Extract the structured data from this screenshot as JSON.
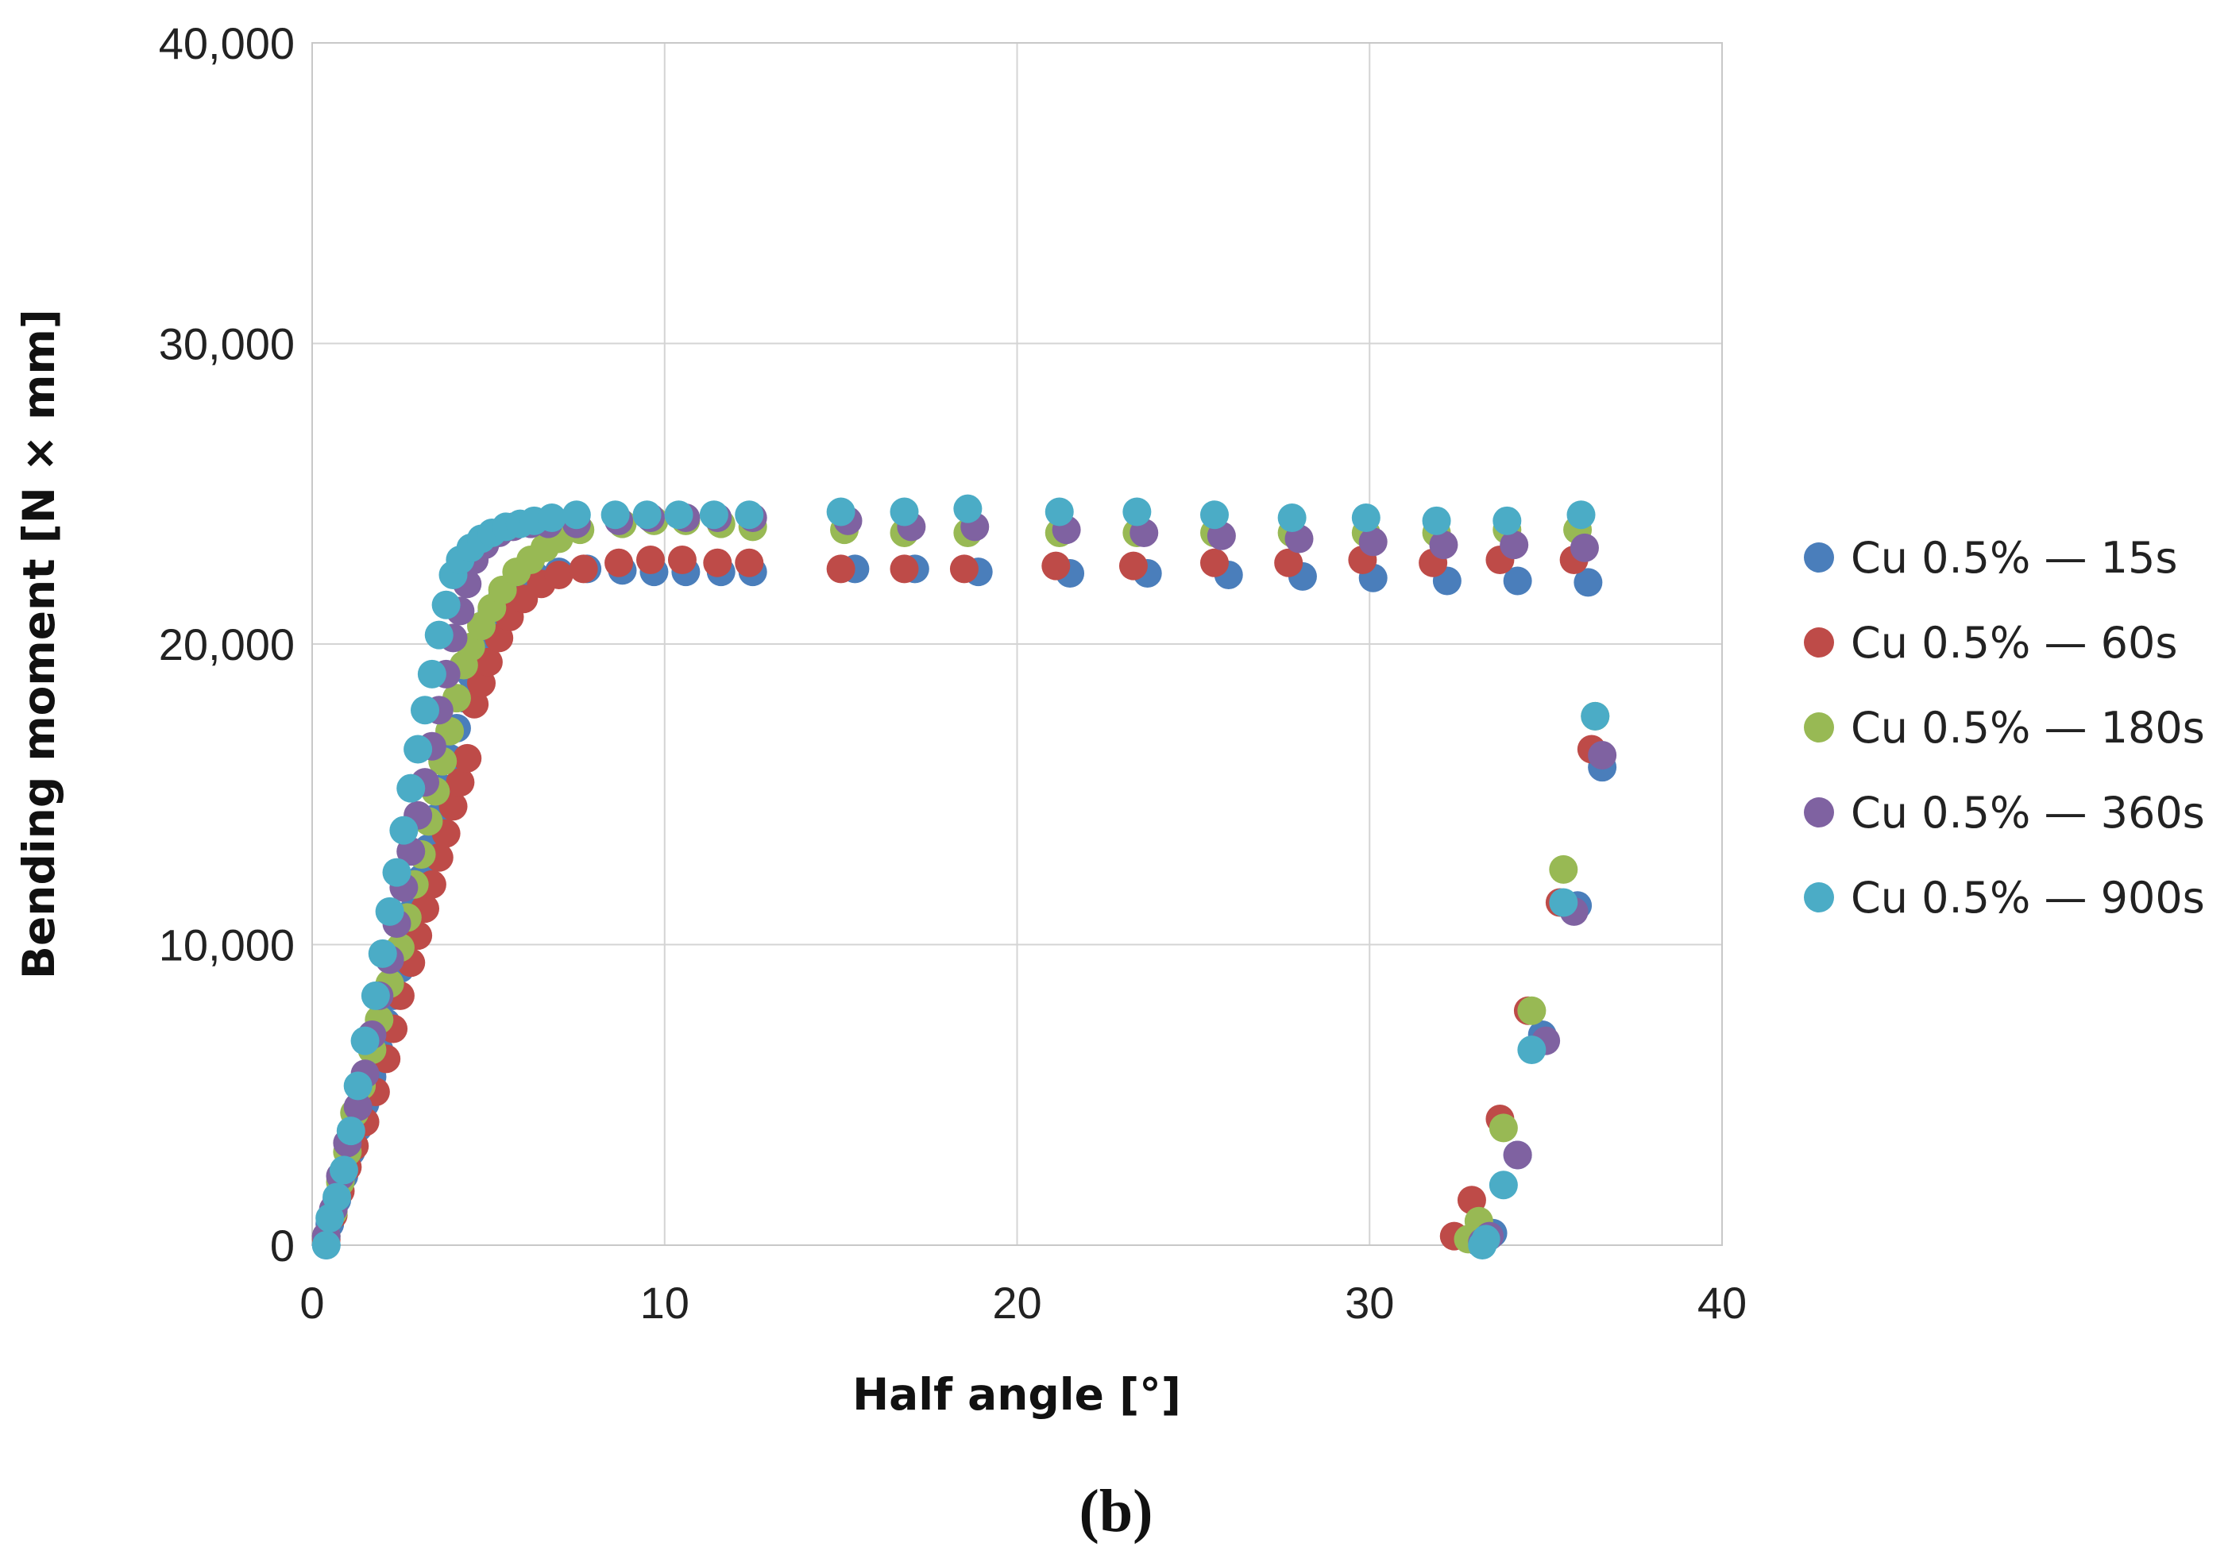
{
  "chart_data": {
    "type": "scatter",
    "title": "",
    "xlabel": "Half angle [°]",
    "ylabel": "Bending moment [N × mm]",
    "caption": "(b)",
    "xlim": [
      0,
      40
    ],
    "ylim": [
      0,
      40000
    ],
    "xticks": [
      0,
      10,
      20,
      30,
      40
    ],
    "yticks": [
      0,
      10000,
      20000,
      30000,
      40000
    ],
    "xtick_labels": [
      "0",
      "10",
      "20",
      "30",
      "40"
    ],
    "ytick_labels": [
      "0",
      "10,000",
      "20,000",
      "30,000",
      "40,000"
    ],
    "grid": true,
    "legend_position": "right",
    "series": [
      {
        "name": "Cu 0.5% — 15s",
        "color": "#4a7ebb",
        "points": [
          [
            0.4,
            0
          ],
          [
            0.5,
            700
          ],
          [
            0.7,
            1500
          ],
          [
            0.9,
            2300
          ],
          [
            1.1,
            3100
          ],
          [
            1.3,
            3900
          ],
          [
            1.5,
            4700
          ],
          [
            1.7,
            5600
          ],
          [
            1.9,
            6500
          ],
          [
            2.1,
            7400
          ],
          [
            2.3,
            8300
          ],
          [
            2.5,
            9200
          ],
          [
            2.7,
            10200
          ],
          [
            2.9,
            11200
          ],
          [
            3.1,
            12200
          ],
          [
            3.3,
            13200
          ],
          [
            3.5,
            14200
          ],
          [
            3.7,
            15200
          ],
          [
            3.9,
            16200
          ],
          [
            4.1,
            17200
          ],
          [
            4.3,
            18200
          ],
          [
            4.5,
            19000
          ],
          [
            4.7,
            19800
          ],
          [
            4.9,
            20500
          ],
          [
            5.1,
            21100
          ],
          [
            5.4,
            21600
          ],
          [
            5.8,
            22000
          ],
          [
            6.3,
            22300
          ],
          [
            7,
            22400
          ],
          [
            7.8,
            22500
          ],
          [
            8.8,
            22450
          ],
          [
            9.7,
            22400
          ],
          [
            10.6,
            22400
          ],
          [
            11.6,
            22400
          ],
          [
            12.5,
            22400
          ],
          [
            15.4,
            22500
          ],
          [
            17.1,
            22500
          ],
          [
            18.9,
            22400
          ],
          [
            21.5,
            22350
          ],
          [
            23.7,
            22350
          ],
          [
            26,
            22300
          ],
          [
            28.1,
            22250
          ],
          [
            30.1,
            22200
          ],
          [
            32.2,
            22100
          ],
          [
            34.2,
            22100
          ],
          [
            36.2,
            22050
          ],
          [
            36.6,
            15900
          ],
          [
            35.9,
            11300
          ],
          [
            34.9,
            7000
          ],
          [
            34.2,
            3000
          ],
          [
            33.5,
            400
          ],
          [
            33.1,
            100
          ]
        ]
      },
      {
        "name": "Cu 0.5% — 60s",
        "color": "#be4b48",
        "points": [
          [
            0.4,
            200
          ],
          [
            0.6,
            1000
          ],
          [
            0.8,
            1800
          ],
          [
            1,
            2600
          ],
          [
            1.2,
            3300
          ],
          [
            1.5,
            4100
          ],
          [
            1.8,
            5100
          ],
          [
            2.1,
            6200
          ],
          [
            2.3,
            7200
          ],
          [
            2.5,
            8300
          ],
          [
            2.8,
            9400
          ],
          [
            3,
            10300
          ],
          [
            3.2,
            11200
          ],
          [
            3.4,
            12000
          ],
          [
            3.6,
            12900
          ],
          [
            3.8,
            13700
          ],
          [
            4,
            14600
          ],
          [
            4.2,
            15400
          ],
          [
            4.4,
            16200
          ],
          [
            4.6,
            18000
          ],
          [
            4.8,
            18700
          ],
          [
            5,
            19400
          ],
          [
            5.3,
            20200
          ],
          [
            5.6,
            20900
          ],
          [
            6,
            21500
          ],
          [
            6.5,
            22000
          ],
          [
            7,
            22300
          ],
          [
            7.7,
            22500
          ],
          [
            8.7,
            22700
          ],
          [
            9.6,
            22800
          ],
          [
            10.5,
            22800
          ],
          [
            11.5,
            22700
          ],
          [
            12.4,
            22700
          ],
          [
            15,
            22500
          ],
          [
            16.8,
            22500
          ],
          [
            18.5,
            22500
          ],
          [
            21.1,
            22600
          ],
          [
            23.3,
            22600
          ],
          [
            25.6,
            22700
          ],
          [
            27.7,
            22700
          ],
          [
            29.8,
            22800
          ],
          [
            31.8,
            22700
          ],
          [
            33.7,
            22800
          ],
          [
            35.8,
            22800
          ],
          [
            36.3,
            16500
          ],
          [
            35.4,
            11400
          ],
          [
            34.5,
            7800
          ],
          [
            33.7,
            4200
          ],
          [
            32.9,
            1500
          ],
          [
            32.4,
            300
          ]
        ]
      },
      {
        "name": "Cu 0.5% — 180s",
        "color": "#98b954",
        "points": [
          [
            0.4,
            300
          ],
          [
            0.6,
            1100
          ],
          [
            0.8,
            2100
          ],
          [
            1,
            3100
          ],
          [
            1.2,
            4400
          ],
          [
            1.4,
            5300
          ],
          [
            1.7,
            6500
          ],
          [
            1.9,
            7500
          ],
          [
            2.2,
            8700
          ],
          [
            2.5,
            9900
          ],
          [
            2.7,
            10900
          ],
          [
            2.9,
            12000
          ],
          [
            3.1,
            13000
          ],
          [
            3.3,
            14100
          ],
          [
            3.5,
            15100
          ],
          [
            3.7,
            16100
          ],
          [
            3.9,
            17100
          ],
          [
            4.1,
            18200
          ],
          [
            4.3,
            19300
          ],
          [
            4.5,
            19900
          ],
          [
            4.8,
            20600
          ],
          [
            5.1,
            21200
          ],
          [
            5.4,
            21800
          ],
          [
            5.8,
            22400
          ],
          [
            6.2,
            22800
          ],
          [
            6.6,
            23200
          ],
          [
            7,
            23500
          ],
          [
            7.6,
            23800
          ],
          [
            8.8,
            24000
          ],
          [
            9.7,
            24100
          ],
          [
            10.6,
            24100
          ],
          [
            11.6,
            24000
          ],
          [
            12.5,
            23900
          ],
          [
            15.1,
            23800
          ],
          [
            16.8,
            23700
          ],
          [
            18.6,
            23700
          ],
          [
            21.2,
            23700
          ],
          [
            23.4,
            23700
          ],
          [
            25.6,
            23700
          ],
          [
            27.8,
            23700
          ],
          [
            29.9,
            23700
          ],
          [
            31.9,
            23700
          ],
          [
            33.9,
            23800
          ],
          [
            35.9,
            23800
          ],
          [
            36.4,
            17600
          ],
          [
            35.5,
            12500
          ],
          [
            34.6,
            7800
          ],
          [
            33.8,
            3900
          ],
          [
            33.1,
            800
          ],
          [
            32.8,
            200
          ]
        ]
      },
      {
        "name": "Cu 0.5% — 360s",
        "color": "#7f62a1",
        "points": [
          [
            0.4,
            300
          ],
          [
            0.6,
            1200
          ],
          [
            0.8,
            2300
          ],
          [
            1,
            3400
          ],
          [
            1.3,
            4600
          ],
          [
            1.5,
            5700
          ],
          [
            1.7,
            7000
          ],
          [
            1.9,
            8300
          ],
          [
            2.2,
            9500
          ],
          [
            2.4,
            10700
          ],
          [
            2.6,
            11900
          ],
          [
            2.8,
            13100
          ],
          [
            3,
            14300
          ],
          [
            3.2,
            15400
          ],
          [
            3.4,
            16600
          ],
          [
            3.6,
            17800
          ],
          [
            3.8,
            19000
          ],
          [
            4,
            20200
          ],
          [
            4.2,
            21100
          ],
          [
            4.4,
            22000
          ],
          [
            4.6,
            22800
          ],
          [
            4.9,
            23300
          ],
          [
            5.3,
            23700
          ],
          [
            5.7,
            23900
          ],
          [
            6.2,
            24000
          ],
          [
            6.7,
            24000
          ],
          [
            7.5,
            24000
          ],
          [
            8.7,
            24100
          ],
          [
            9.6,
            24200
          ],
          [
            10.6,
            24200
          ],
          [
            11.5,
            24200
          ],
          [
            12.5,
            24200
          ],
          [
            15.2,
            24100
          ],
          [
            17,
            23900
          ],
          [
            18.8,
            23900
          ],
          [
            21.4,
            23800
          ],
          [
            23.6,
            23700
          ],
          [
            25.8,
            23600
          ],
          [
            28,
            23500
          ],
          [
            30.1,
            23400
          ],
          [
            32.1,
            23300
          ],
          [
            34.1,
            23300
          ],
          [
            36.1,
            23200
          ],
          [
            36.6,
            16300
          ],
          [
            35.8,
            11100
          ],
          [
            35,
            6800
          ],
          [
            34.2,
            3000
          ],
          [
            33.4,
            300
          ],
          [
            33.2,
            100
          ]
        ]
      },
      {
        "name": "Cu 0.5% — 900s",
        "color": "#4bacc6",
        "points": [
          [
            0.4,
            0
          ],
          [
            0.5,
            900
          ],
          [
            0.7,
            1600
          ],
          [
            0.9,
            2500
          ],
          [
            1.1,
            3800
          ],
          [
            1.3,
            5300
          ],
          [
            1.5,
            6800
          ],
          [
            1.8,
            8300
          ],
          [
            2,
            9700
          ],
          [
            2.2,
            11100
          ],
          [
            2.4,
            12400
          ],
          [
            2.6,
            13800
          ],
          [
            2.8,
            15200
          ],
          [
            3,
            16500
          ],
          [
            3.2,
            17800
          ],
          [
            3.4,
            19000
          ],
          [
            3.6,
            20300
          ],
          [
            3.8,
            21300
          ],
          [
            4,
            22300
          ],
          [
            4.2,
            22800
          ],
          [
            4.5,
            23200
          ],
          [
            4.8,
            23500
          ],
          [
            5.1,
            23700
          ],
          [
            5.5,
            23900
          ],
          [
            5.9,
            24000
          ],
          [
            6.3,
            24100
          ],
          [
            6.8,
            24200
          ],
          [
            7.5,
            24300
          ],
          [
            8.6,
            24300
          ],
          [
            9.5,
            24300
          ],
          [
            10.4,
            24300
          ],
          [
            11.4,
            24300
          ],
          [
            12.4,
            24300
          ],
          [
            15,
            24400
          ],
          [
            16.8,
            24400
          ],
          [
            18.6,
            24500
          ],
          [
            21.2,
            24400
          ],
          [
            23.4,
            24400
          ],
          [
            25.6,
            24300
          ],
          [
            27.8,
            24200
          ],
          [
            29.9,
            24200
          ],
          [
            31.9,
            24100
          ],
          [
            33.9,
            24100
          ],
          [
            36,
            24300
          ],
          [
            36.4,
            17600
          ],
          [
            35.5,
            11400
          ],
          [
            34.6,
            6500
          ],
          [
            33.8,
            2000
          ],
          [
            33.3,
            200
          ],
          [
            33.2,
            0
          ]
        ]
      }
    ]
  }
}
